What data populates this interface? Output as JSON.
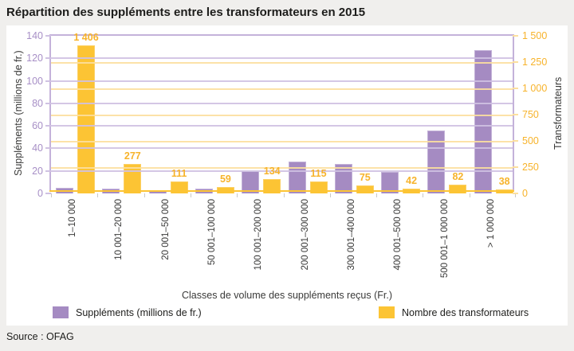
{
  "title": "Répartition des suppléments entre les transformateurs en 2015",
  "source": "Source : OFAG",
  "colors": {
    "background": "#f0efed",
    "panel": "#ffffff",
    "purple": "#a58bc2",
    "yellow": "#fcc434",
    "purple_grid": "#cfc1e2",
    "yellow_grid": "#fcdf9e",
    "yellow_text": "#f7b32b",
    "purple_text": "#a78fc6",
    "dark_text": "#1d1d1b"
  },
  "chart_data": {
    "type": "bar",
    "title": "Répartition des suppléments entre les transformateurs en 2015",
    "x_title": "Classes de volume des suppléments reçus (Fr.)",
    "categories": [
      "1–10 000",
      "10 001–20 000",
      "20 001–50 000",
      "50 001–100 000",
      "100 001–200 000",
      "200 001–300 000",
      "300 001–400 000",
      "400 001–500 000",
      "500 001–1 000 000",
      "> 1 000 000"
    ],
    "series": [
      {
        "name": "Suppléments (millions de fr.)",
        "axis": "left",
        "values": [
          5,
          4,
          3,
          4,
          20,
          28,
          26,
          19,
          56,
          127
        ]
      },
      {
        "name": "Nombre des transformateurs",
        "axis": "right",
        "values": [
          1406,
          277,
          111,
          59,
          134,
          115,
          75,
          42,
          82,
          38
        ],
        "labels": [
          "1 406",
          "277",
          "111",
          "59",
          "134",
          "115",
          "75",
          "42",
          "82",
          "38"
        ]
      }
    ],
    "left_axis": {
      "label": "Suppléments (millions de fr.)",
      "min": 0,
      "max": 140,
      "step": 20,
      "ticks": [
        "0",
        "20",
        "40",
        "60",
        "80",
        "100",
        "120",
        "140"
      ]
    },
    "right_axis": {
      "label": "Transformateurs",
      "min": 0,
      "max": 1500,
      "step": 250,
      "ticks": [
        "0",
        "250",
        "500",
        "750",
        "1 000",
        "1 250",
        "1 500"
      ]
    },
    "legend": [
      {
        "label": "Suppléments (millions de fr.)",
        "color_key": "purple"
      },
      {
        "label": "Nombre des transformateurs",
        "color_key": "yellow"
      }
    ],
    "grid": true,
    "legend_position": "bottom"
  }
}
